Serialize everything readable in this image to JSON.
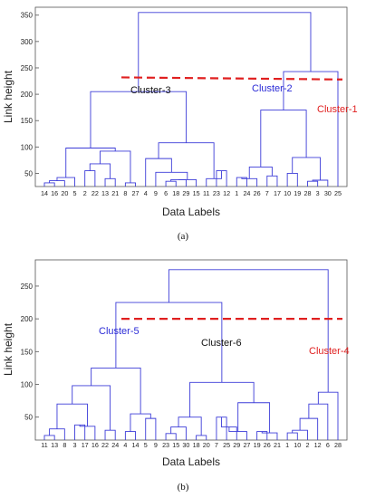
{
  "chart_data": [
    {
      "type": "dendrogram",
      "panel_label": "(a)",
      "xlabel": "Data Labels",
      "ylabel": "Link height",
      "ylim": [
        25,
        365
      ],
      "yticks": [
        50,
        100,
        150,
        200,
        250,
        300,
        350
      ],
      "leaf_labels": [
        "14",
        "16",
        "20",
        "5",
        "2",
        "22",
        "13",
        "21",
        "8",
        "27",
        "4",
        "9",
        "6",
        "18",
        "29",
        "15",
        "11",
        "23",
        "12",
        "1",
        "24",
        "26",
        "7",
        "17",
        "10",
        "19",
        "28",
        "3",
        "30",
        "25"
      ],
      "merges": [
        {
          "a": "L0",
          "b": "L1",
          "h": 32
        },
        {
          "a": "N0",
          "b": "L2",
          "h": 36
        },
        {
          "a": "N1",
          "b": "L3",
          "h": 42
        },
        {
          "a": "L4",
          "b": "L5",
          "h": 55
        },
        {
          "a": "L6",
          "b": "L7",
          "h": 40
        },
        {
          "a": "N3",
          "b": "N4",
          "h": 68
        },
        {
          "a": "L8",
          "b": "L9",
          "h": 32
        },
        {
          "a": "N5",
          "b": "N6",
          "h": 92
        },
        {
          "a": "N2",
          "b": "N7",
          "h": 98
        },
        {
          "a": "L12",
          "b": "L13",
          "h": 35
        },
        {
          "a": "N9",
          "b": "L14",
          "h": 38
        },
        {
          "a": "N10",
          "b": "L15",
          "h": 38
        },
        {
          "a": "L11",
          "b": "N11",
          "h": 52
        },
        {
          "a": "L10",
          "b": "N12",
          "h": 78
        },
        {
          "a": "L17",
          "b": "L18",
          "h": 55
        },
        {
          "a": "L16",
          "b": "N14",
          "h": 40
        },
        {
          "a": "N13",
          "b": "N15",
          "h": 108
        },
        {
          "a": "N8",
          "b": "N16",
          "h": 205
        },
        {
          "a": "L19",
          "b": "L20",
          "h": 42
        },
        {
          "a": "N18",
          "b": "L21",
          "h": 40
        },
        {
          "a": "L22",
          "b": "L23",
          "h": 45
        },
        {
          "a": "N19",
          "b": "N20",
          "h": 62
        },
        {
          "a": "L24",
          "b": "L25",
          "h": 50
        },
        {
          "a": "L26",
          "b": "L27",
          "h": 35
        },
        {
          "a": "N23",
          "b": "L28",
          "h": 37
        },
        {
          "a": "N22",
          "b": "N24",
          "h": 80
        },
        {
          "a": "N21",
          "b": "N25",
          "h": 170
        },
        {
          "a": "N26",
          "b": "L29",
          "h": 243
        },
        {
          "a": "N17",
          "b": "N27",
          "h": 355
        }
      ],
      "cutoff": {
        "from": 232,
        "to": 228,
        "color": "#e02020"
      },
      "clusters": [
        {
          "name": "Cluster-3",
          "color": "#111111"
        },
        {
          "name": "Cluster-2",
          "color": "#2a2ad6"
        },
        {
          "name": "Cluster-1",
          "color": "#e02020"
        }
      ],
      "tree_color": "#3c3cd8"
    },
    {
      "type": "dendrogram",
      "panel_label": "(b)",
      "xlabel": "Data Labels",
      "ylabel": "Link height",
      "ylim": [
        15,
        290
      ],
      "yticks": [
        50,
        100,
        150,
        200,
        250
      ],
      "leaf_labels": [
        "11",
        "13",
        "8",
        "3",
        "17",
        "16",
        "22",
        "24",
        "4",
        "14",
        "5",
        "9",
        "23",
        "15",
        "30",
        "18",
        "20",
        "7",
        "25",
        "29",
        "27",
        "19",
        "26",
        "21",
        "1",
        "10",
        "2",
        "12",
        "6",
        "28"
      ],
      "merges": [
        {
          "a": "L0",
          "b": "L1",
          "h": 22
        },
        {
          "a": "N0",
          "b": "L2",
          "h": 32
        },
        {
          "a": "L3",
          "b": "L4",
          "h": 38
        },
        {
          "a": "N2",
          "b": "L5",
          "h": 36
        },
        {
          "a": "N1",
          "b": "N3",
          "h": 70
        },
        {
          "a": "L6",
          "b": "L7",
          "h": 30
        },
        {
          "a": "N4",
          "b": "N5",
          "h": 98
        },
        {
          "a": "L8",
          "b": "L9",
          "h": 28
        },
        {
          "a": "L10",
          "b": "L11",
          "h": 48
        },
        {
          "a": "N7",
          "b": "N8",
          "h": 55
        },
        {
          "a": "N6",
          "b": "N9",
          "h": 125
        },
        {
          "a": "L12",
          "b": "L13",
          "h": 25
        },
        {
          "a": "N11",
          "b": "L14",
          "h": 35
        },
        {
          "a": "L15",
          "b": "L16",
          "h": 22
        },
        {
          "a": "N12",
          "b": "N13",
          "h": 50
        },
        {
          "a": "L17",
          "b": "L18",
          "h": 50
        },
        {
          "a": "N15",
          "b": "L19",
          "h": 35
        },
        {
          "a": "N16",
          "b": "L20",
          "h": 28
        },
        {
          "a": "L21",
          "b": "L22",
          "h": 28
        },
        {
          "a": "N18",
          "b": "L23",
          "h": 26
        },
        {
          "a": "N17",
          "b": "N19",
          "h": 72
        },
        {
          "a": "N14",
          "b": "N20",
          "h": 103
        },
        {
          "a": "N10",
          "b": "N21",
          "h": 225
        },
        {
          "a": "L24",
          "b": "L25",
          "h": 26
        },
        {
          "a": "N23",
          "b": "L26",
          "h": 30
        },
        {
          "a": "N24",
          "b": "L27",
          "h": 48
        },
        {
          "a": "N25",
          "b": "L28",
          "h": 70
        },
        {
          "a": "N26",
          "b": "L29",
          "h": 88
        },
        {
          "a": "N22",
          "b": "N27",
          "h": 275
        }
      ],
      "cutoff": {
        "from": 200,
        "to": 200,
        "color": "#e02020"
      },
      "clusters": [
        {
          "name": "Cluster-5",
          "color": "#2a2ad6"
        },
        {
          "name": "Cluster-6",
          "color": "#111111"
        },
        {
          "name": "Cluster-4",
          "color": "#e02020"
        }
      ],
      "tree_color": "#3c3cd8"
    }
  ]
}
